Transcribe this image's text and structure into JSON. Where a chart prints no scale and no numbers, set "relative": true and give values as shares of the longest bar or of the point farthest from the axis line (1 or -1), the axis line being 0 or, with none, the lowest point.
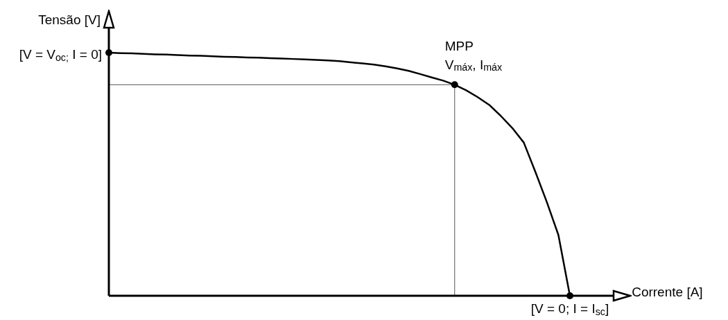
{
  "chart_data": {
    "type": "line",
    "relative": true,
    "xlabel": "Corrente [A]",
    "ylabel": "Tensão [V]",
    "legend": false,
    "categories": [
      null,
      null,
      null,
      null,
      null,
      null,
      null,
      null,
      null,
      null,
      null,
      null,
      null,
      null,
      null,
      null,
      null,
      null,
      null,
      null,
      null,
      null,
      null,
      null,
      null,
      null,
      null,
      null,
      null,
      null,
      null,
      null,
      null,
      null,
      null,
      null,
      null,
      null,
      null,
      null,
      null
    ],
    "series": [
      {
        "color": "#000000",
        "values": [
          1,
          0.998,
          0.997,
          0.995,
          0.993,
          0.992,
          0.99,
          0.988,
          0.987,
          0.985,
          0.983,
          0.982,
          0.98,
          0.979,
          0.977,
          0.976,
          0.974,
          0.972,
          0.97,
          0.968,
          0.965,
          0.96,
          0.956,
          0.951,
          0.944,
          0.935,
          0.925,
          0.912,
          0.898,
          0.885,
          0.868,
          0.845,
          0.817,
          0.785,
          0.74,
          0.69,
          0.63,
          0.51,
          0.385,
          0.25,
          0
        ]
      }
    ],
    "ref_lines": [
      {
        "axis": "y",
        "value": 0.868,
        "color": "#555555"
      }
    ],
    "annotations": [
      "[V = V$_{oc;}$ I = 0]",
      "MPP\nV$_{máx}$, I$_{máx}$",
      "[V = 0; I = I$_{sc}$]"
    ]
  }
}
